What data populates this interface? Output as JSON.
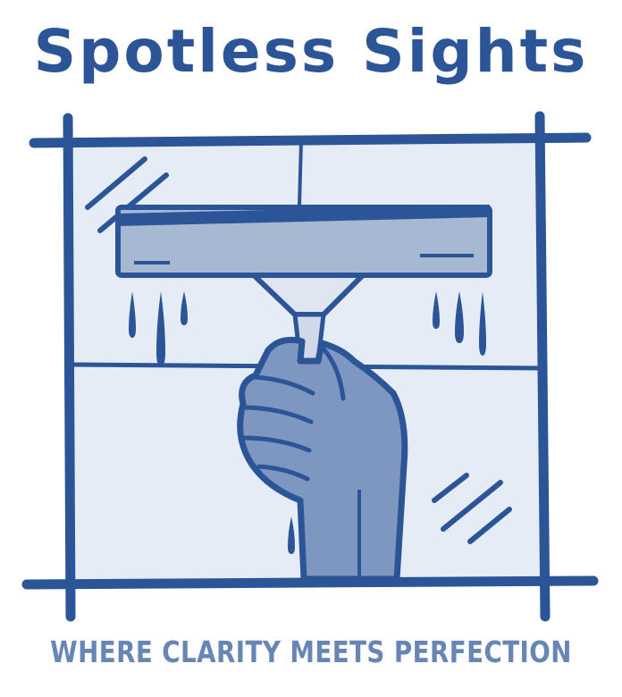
{
  "brand": {
    "title": "Spotless Sights",
    "tagline": "WHERE CLARITY MEETS PERFECTION"
  },
  "illustration": {
    "icon": "hand-holding-squeegee-icon",
    "frame": "window-frame-icon"
  },
  "colors": {
    "primary": "#2b5597",
    "secondary": "#6786b5",
    "glass": "#e6ecf5",
    "blade": "#a7b8d3",
    "hand": "#7d97c0",
    "background": "#ffffff"
  }
}
